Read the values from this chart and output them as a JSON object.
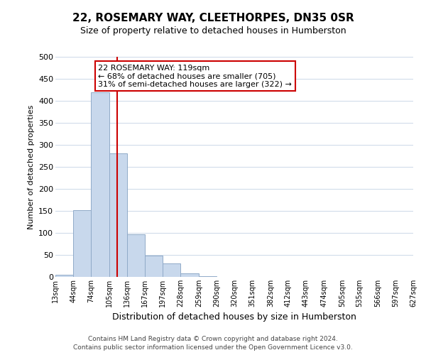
{
  "title1": "22, ROSEMARY WAY, CLEETHORPES, DN35 0SR",
  "title2": "Size of property relative to detached houses in Humberston",
  "xlabel": "Distribution of detached houses by size in Humberston",
  "ylabel": "Number of detached properties",
  "bar_color": "#c8d8ec",
  "bar_edge_color": "#90aac8",
  "vline_x": 119,
  "vline_color": "#cc0000",
  "bin_edges": [
    13,
    44,
    74,
    105,
    136,
    167,
    197,
    228,
    259,
    290,
    320,
    351,
    382,
    412,
    443,
    474,
    505,
    535,
    566,
    597,
    627
  ],
  "bin_labels": [
    "13sqm",
    "44sqm",
    "74sqm",
    "105sqm",
    "136sqm",
    "167sqm",
    "197sqm",
    "228sqm",
    "259sqm",
    "290sqm",
    "320sqm",
    "351sqm",
    "382sqm",
    "412sqm",
    "443sqm",
    "474sqm",
    "505sqm",
    "535sqm",
    "566sqm",
    "597sqm",
    "627sqm"
  ],
  "bar_heights": [
    5,
    151,
    420,
    280,
    96,
    48,
    30,
    8,
    1,
    0,
    0,
    0,
    0,
    0,
    0,
    0,
    0,
    0,
    0,
    0
  ],
  "ylim": [
    0,
    500
  ],
  "yticks": [
    0,
    50,
    100,
    150,
    200,
    250,
    300,
    350,
    400,
    450,
    500
  ],
  "annotation_line1": "22 ROSEMARY WAY: 119sqm",
  "annotation_line2": "← 68% of detached houses are smaller (705)",
  "annotation_line3": "31% of semi-detached houses are larger (322) →",
  "annotation_box_color": "#ffffff",
  "annotation_box_edge": "#cc0000",
  "footer1": "Contains HM Land Registry data © Crown copyright and database right 2024.",
  "footer2": "Contains public sector information licensed under the Open Government Licence v3.0.",
  "background_color": "#ffffff",
  "grid_color": "#ccd8e8"
}
